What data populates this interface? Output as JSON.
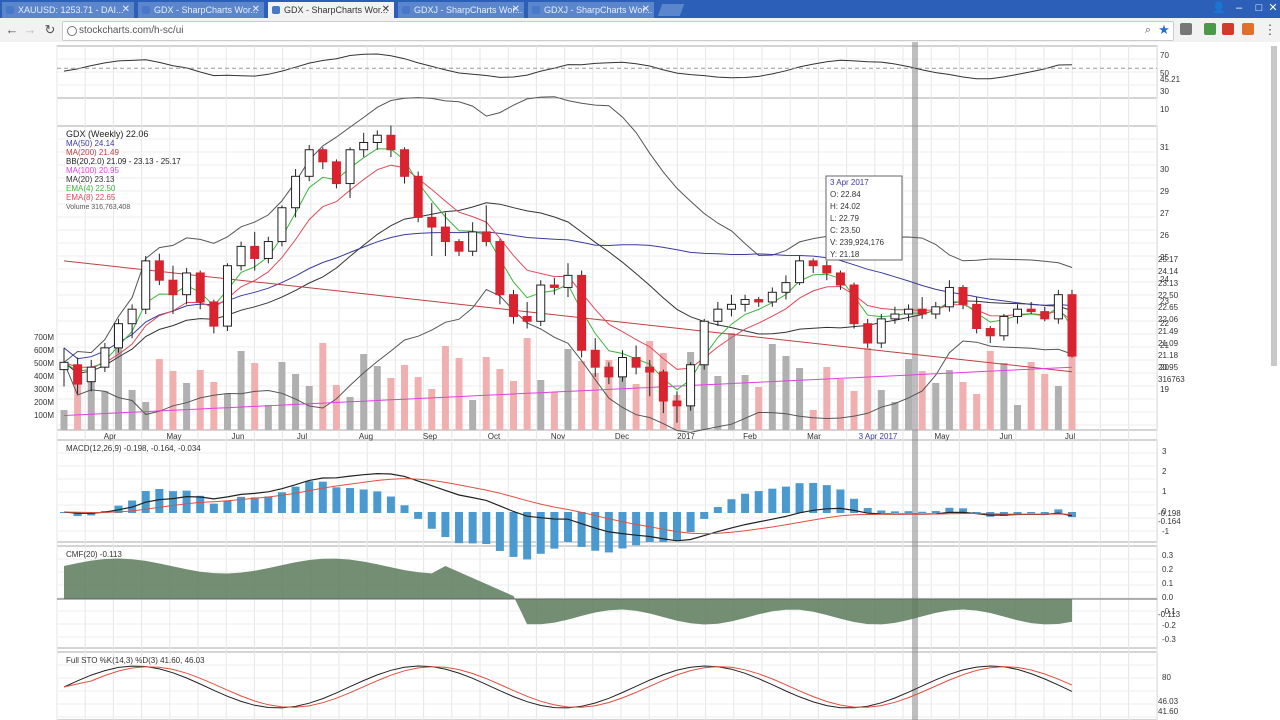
{
  "browser": {
    "tabs": [
      {
        "label": "XAUUSD: 1253.71 - DAI..."
      },
      {
        "label": "GDX - SharpCharts Wor..."
      },
      {
        "label": "GDX - SharpCharts Wor..."
      },
      {
        "label": "GDXJ - SharpCharts Wor..."
      },
      {
        "label": "GDXJ - SharpCharts Wor..."
      }
    ],
    "url": "stockcharts.com/h-sc/ui"
  },
  "colors": {
    "up": "#ffffff",
    "down": "#d9232e",
    "ma50": "#3a3aa0",
    "ma200": "#c04040",
    "bb": "#555555",
    "ma100": "#e040e0",
    "ma20": "#333333",
    "ema4": "#3cb43c",
    "ema8": "#e04a5a",
    "vol_up": "#b0b0b0",
    "vol_down": "#f0b0b0",
    "macd_hist": "#4a9ad0",
    "cmf_pos": "#5a7a5a",
    "cmf_neg": "#a0604a"
  },
  "chart": {
    "legend": [
      "GDX (Weekly) 22.06",
      "MA(50) 24.14",
      "MA(200) 21.49",
      "BB(20,2.0) 21.09 - 23.13 - 25.17",
      "MA(100) 20.95",
      "MA(20) 23.13",
      "EMA(4) 22.50",
      "EMA(8) 22.65",
      "Volume 316,763,408"
    ],
    "tooltip": {
      "date": "3 Apr 2017",
      "o": "O: 22.84",
      "h": "H: 24.02",
      "l": "L: 22.79",
      "c": "C: 23.50",
      "v": "V: 239,924,176",
      "y": "Y: 21.18"
    },
    "x_labels": [
      "Apr",
      "May",
      "Jun",
      "Jul",
      "Aug",
      "Sep",
      "Oct",
      "Nov",
      "Dec",
      "2017",
      "Feb",
      "Mar",
      "3 Apr 2017",
      "May",
      "Jun",
      "Jul"
    ],
    "rsi_axis": [
      "70",
      "50",
      "30",
      "10"
    ],
    "rsi_value": "45.21",
    "price_axis": [
      "31",
      "30",
      "29",
      "27",
      "26",
      "25",
      "24",
      "23",
      "22",
      "21",
      "20",
      "19"
    ],
    "price_tags": [
      "25.17",
      "24.14",
      "23.13",
      "22.50",
      "22.65",
      "22.06",
      "21.49",
      "21.09",
      "21.18",
      "20.95",
      "316763"
    ],
    "volume_axis": [
      "700M",
      "600M",
      "500M",
      "400M",
      "300M",
      "200M",
      "100M"
    ],
    "macd_label": "MACD(12,26,9) -0.198, -0.164, -0.034",
    "macd_axis": [
      "3",
      "2",
      "1",
      "0",
      "-1"
    ],
    "macd_tags": [
      "-0.198",
      "-0.164"
    ],
    "cmf_label": "CMF(20) -0.113",
    "cmf_axis": [
      "0.3",
      "0.2",
      "0.1",
      "0.0",
      "-0.1",
      "-0.2",
      "-0.3"
    ],
    "cmf_tag": "-0.113",
    "sto_label": "Full STO %K(14,3) %D(3) 41.60, 46.03",
    "sto_axis": [
      "80"
    ],
    "sto_tags": [
      "46.03",
      "41.60"
    ]
  },
  "chart_data": {
    "type": "candlestick",
    "title": "GDX (Weekly) 22.06",
    "ohlc": [
      [
        21.5,
        22.4,
        20.8,
        21.8
      ],
      [
        21.7,
        22.0,
        20.5,
        20.9
      ],
      [
        21.0,
        21.9,
        20.6,
        21.6
      ],
      [
        21.6,
        22.6,
        21.4,
        22.4
      ],
      [
        22.4,
        23.6,
        22.2,
        23.4
      ],
      [
        23.4,
        24.2,
        22.8,
        24.0
      ],
      [
        24.0,
        26.2,
        23.8,
        26.0
      ],
      [
        26.0,
        26.3,
        25.0,
        25.2
      ],
      [
        25.2,
        25.8,
        23.8,
        24.6
      ],
      [
        24.6,
        25.7,
        24.2,
        25.5
      ],
      [
        25.5,
        25.6,
        24.0,
        24.3
      ],
      [
        24.3,
        24.4,
        23.0,
        23.3
      ],
      [
        23.3,
        25.9,
        23.1,
        25.8
      ],
      [
        25.8,
        26.8,
        25.6,
        26.6
      ],
      [
        26.6,
        27.2,
        25.6,
        26.1
      ],
      [
        26.1,
        27.0,
        25.9,
        26.8
      ],
      [
        26.8,
        28.3,
        26.6,
        28.2
      ],
      [
        28.2,
        29.8,
        27.8,
        29.5
      ],
      [
        29.5,
        30.8,
        29.3,
        30.6
      ],
      [
        30.6,
        30.7,
        29.8,
        30.1
      ],
      [
        30.1,
        30.2,
        29.0,
        29.2
      ],
      [
        29.2,
        30.7,
        28.6,
        30.6
      ],
      [
        30.6,
        31.3,
        30.3,
        30.9
      ],
      [
        30.9,
        31.4,
        30.6,
        31.2
      ],
      [
        31.2,
        31.6,
        30.3,
        30.6
      ],
      [
        30.6,
        30.7,
        29.2,
        29.5
      ],
      [
        29.5,
        29.7,
        27.6,
        27.8
      ],
      [
        27.8,
        28.4,
        26.2,
        27.4
      ],
      [
        27.4,
        28.0,
        26.2,
        26.8
      ],
      [
        26.8,
        26.9,
        26.2,
        26.4
      ],
      [
        26.4,
        27.6,
        26.2,
        27.2
      ],
      [
        27.2,
        28.3,
        26.6,
        26.8
      ],
      [
        26.8,
        26.9,
        24.2,
        24.6
      ],
      [
        24.6,
        24.8,
        23.4,
        23.7
      ],
      [
        23.7,
        24.3,
        23.2,
        23.5
      ],
      [
        23.5,
        25.2,
        23.3,
        25.0
      ],
      [
        25.0,
        25.3,
        24.6,
        24.9
      ],
      [
        24.9,
        25.9,
        24.5,
        25.4
      ],
      [
        25.4,
        25.6,
        22.0,
        22.3
      ],
      [
        22.3,
        22.8,
        21.2,
        21.6
      ],
      [
        21.6,
        21.8,
        20.9,
        21.2
      ],
      [
        21.2,
        22.3,
        21.0,
        22.0
      ],
      [
        22.0,
        22.5,
        21.3,
        21.6
      ],
      [
        21.6,
        21.9,
        20.4,
        21.4
      ],
      [
        21.4,
        21.5,
        19.7,
        20.2
      ],
      [
        20.2,
        20.6,
        19.3,
        20.0
      ],
      [
        20.0,
        21.8,
        19.8,
        21.7
      ],
      [
        21.7,
        23.6,
        21.5,
        23.5
      ],
      [
        23.5,
        24.3,
        23.3,
        24.0
      ],
      [
        24.0,
        24.6,
        23.7,
        24.2
      ],
      [
        24.2,
        24.6,
        23.9,
        24.4
      ],
      [
        24.4,
        24.5,
        24.1,
        24.3
      ],
      [
        24.3,
        24.9,
        24.1,
        24.7
      ],
      [
        24.7,
        25.4,
        24.4,
        25.1
      ],
      [
        25.1,
        26.2,
        25.0,
        26.0
      ],
      [
        26.0,
        26.1,
        25.5,
        25.8
      ],
      [
        25.8,
        26.0,
        25.2,
        25.5
      ],
      [
        25.5,
        25.6,
        24.8,
        25.0
      ],
      [
        25.0,
        25.1,
        23.2,
        23.4
      ],
      [
        23.4,
        23.6,
        22.4,
        22.6
      ],
      [
        22.6,
        23.8,
        22.4,
        23.6
      ],
      [
        23.6,
        24.1,
        23.4,
        23.8
      ],
      [
        23.8,
        24.2,
        23.5,
        24.0
      ],
      [
        24.0,
        24.5,
        23.6,
        23.8
      ],
      [
        23.8,
        24.3,
        23.6,
        24.1
      ],
      [
        24.1,
        25.2,
        23.9,
        24.9
      ],
      [
        24.9,
        25.0,
        24.0,
        24.2
      ],
      [
        24.2,
        24.5,
        23.0,
        23.2
      ],
      [
        23.2,
        23.3,
        22.6,
        22.9
      ],
      [
        22.9,
        23.8,
        22.7,
        23.7
      ],
      [
        23.7,
        24.2,
        23.4,
        24.0
      ],
      [
        24.0,
        24.3,
        23.8,
        23.9
      ],
      [
        23.9,
        24.1,
        23.5,
        23.6
      ],
      [
        23.6,
        24.8,
        23.4,
        24.6
      ],
      [
        24.6,
        24.8,
        22.0,
        22.06
      ]
    ],
    "ylim": [
      19,
      31.5
    ]
  }
}
